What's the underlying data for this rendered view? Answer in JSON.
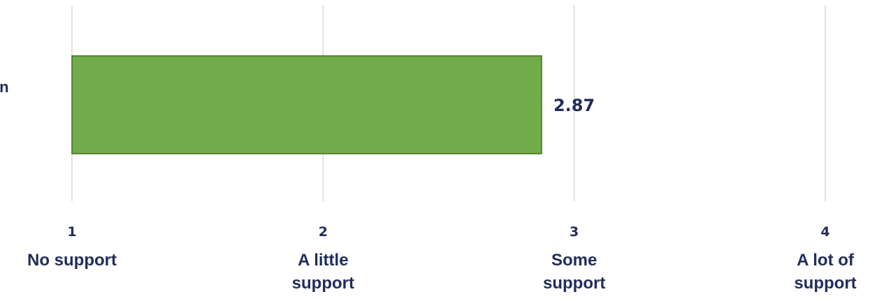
{
  "chart_data": {
    "type": "bar",
    "orientation": "horizontal",
    "categories": [
      "...ation"
    ],
    "values": [
      2.87
    ],
    "data_labels": [
      "2.87"
    ],
    "xlim": [
      1,
      4
    ],
    "grid": true,
    "ticks": [
      {
        "value": 1,
        "number": "1",
        "text": [
          "No support"
        ]
      },
      {
        "value": 2,
        "number": "2",
        "text": [
          "A little",
          "support"
        ]
      },
      {
        "value": 3,
        "number": "3",
        "text": [
          "Some",
          "support"
        ]
      },
      {
        "value": 4,
        "number": "4",
        "text": [
          "A lot of",
          "support"
        ]
      }
    ],
    "colors": {
      "bar_fill": "#72ac4a",
      "bar_stroke": "#3f6b22",
      "label_text": "#1f2d5a",
      "grid": "#d9d9d9"
    }
  },
  "visible_category_text": "ation"
}
